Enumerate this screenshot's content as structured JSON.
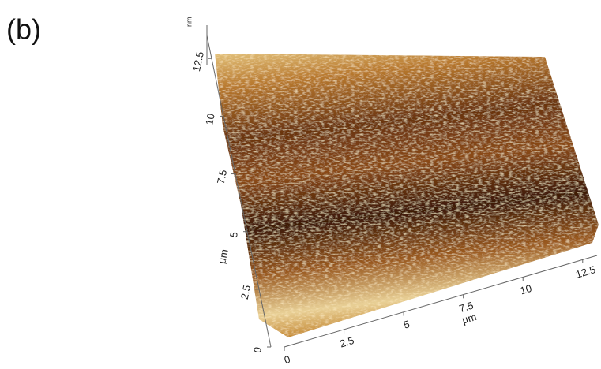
{
  "chart_data": {
    "type": "surface",
    "panel_label": "(b)",
    "xlabel": "µm",
    "ylabel": "µm",
    "zlabel": "nm",
    "xlim": [
      0,
      13.5
    ],
    "ylim": [
      0,
      13.5
    ],
    "xticks": [
      0,
      2.5,
      5,
      7.5,
      10,
      12.5
    ],
    "yticks": [
      0,
      2.5,
      5,
      7.5,
      10,
      12.5
    ]
  }
}
